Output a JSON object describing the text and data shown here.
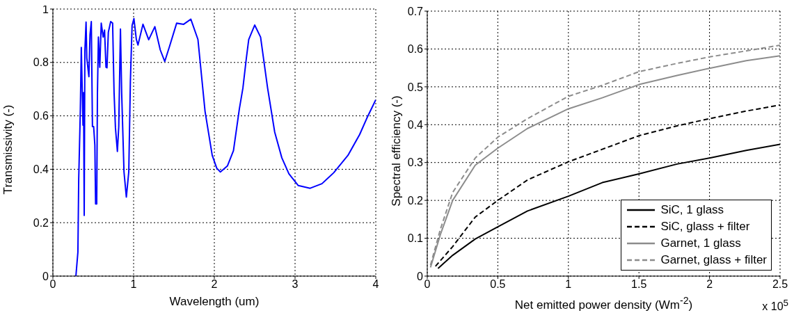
{
  "chart_data": [
    {
      "type": "line",
      "xlabel": "Wavelength (um)",
      "ylabel": "Transmissivity (-)",
      "xlim": [
        0,
        4
      ],
      "ylim": [
        0,
        1
      ],
      "xticks": [
        0,
        1,
        2,
        3,
        4
      ],
      "yticks": [
        0,
        0.2,
        0.4,
        0.6,
        0.8,
        1
      ],
      "grid": true,
      "legend": false,
      "series": [
        {
          "color": "#0000ff",
          "x": [
            0.285,
            0.31,
            0.32,
            0.33,
            0.34,
            0.352,
            0.373,
            0.38,
            0.388,
            0.396,
            0.411,
            0.42,
            0.446,
            0.46,
            0.476,
            0.49,
            0.505,
            0.52,
            0.529,
            0.543,
            0.552,
            0.564,
            0.581,
            0.599,
            0.623,
            0.64,
            0.658,
            0.67,
            0.687,
            0.716,
            0.74,
            0.758,
            0.775,
            0.799,
            0.816,
            0.837,
            0.852,
            0.881,
            0.91,
            0.94,
            0.96,
            0.981,
            1.004,
            1.034,
            1.054,
            1.116,
            1.187,
            1.263,
            1.33,
            1.386,
            1.445,
            1.533,
            1.62,
            1.709,
            1.797,
            1.885,
            1.974,
            2.03,
            2.075,
            2.163,
            2.237,
            2.31,
            2.354,
            2.397,
            2.426,
            2.5,
            2.573,
            2.66,
            2.748,
            2.836,
            2.924,
            3.04,
            3.187,
            3.333,
            3.479,
            3.655,
            3.8,
            3.889,
            4.0
          ],
          "values": [
            0,
            0.09,
            0.365,
            0.49,
            0.62,
            0.856,
            0.565,
            0.687,
            0.227,
            0.84,
            0.951,
            0.817,
            0.747,
            0.904,
            0.953,
            0.56,
            0.56,
            0.49,
            0.27,
            0.27,
            0.687,
            0.895,
            0.782,
            0.947,
            0.895,
            0.921,
            0.782,
            0.78,
            0.913,
            0.953,
            0.947,
            0.687,
            0.555,
            0.467,
            0.56,
            0.925,
            0.687,
            0.39,
            0.296,
            0.39,
            0.73,
            0.938,
            0.964,
            0.886,
            0.865,
            0.943,
            0.885,
            0.934,
            0.847,
            0.804,
            0.86,
            0.947,
            0.943,
            0.962,
            0.886,
            0.617,
            0.452,
            0.404,
            0.39,
            0.413,
            0.47,
            0.626,
            0.704,
            0.817,
            0.886,
            0.94,
            0.895,
            0.704,
            0.539,
            0.443,
            0.383,
            0.339,
            0.329,
            0.346,
            0.387,
            0.452,
            0.53,
            0.591,
            0.66
          ]
        }
      ]
    },
    {
      "type": "line",
      "xlabel": "Net emitted power density (Wm$^{-2}$)",
      "ylabel": "Spectral efficiency (-)",
      "xlim": [
        0,
        2.5
      ],
      "ylim": [
        0,
        0.7
      ],
      "xticks": [
        0,
        0.5,
        1,
        1.5,
        2,
        2.5
      ],
      "yticks": [
        0,
        0.1,
        0.2,
        0.3,
        0.4,
        0.5,
        0.6,
        0.7
      ],
      "grid": true,
      "legend": "bottom right",
      "annotations": [
        "x 10$^{5}$"
      ],
      "series": [
        {
          "name": "SiC, 1 glass",
          "color": "#000000",
          "line_style": "solid",
          "x": [
            0.076,
            0.18,
            0.34,
            0.5,
            0.71,
            1.0,
            1.24,
            1.5,
            1.77,
            2.0,
            2.26,
            2.5
          ],
          "values": [
            0.02,
            0.055,
            0.098,
            0.13,
            0.172,
            0.211,
            0.247,
            0.27,
            0.296,
            0.312,
            0.332,
            0.348
          ]
        },
        {
          "name": "SiC, glass + filter",
          "color": "#000000",
          "line_style": "dashed",
          "x": [
            0.058,
            0.18,
            0.34,
            0.5,
            0.71,
            1.0,
            1.24,
            1.5,
            1.77,
            2.0,
            2.26,
            2.5
          ],
          "values": [
            0.026,
            0.078,
            0.156,
            0.2,
            0.254,
            0.302,
            0.335,
            0.371,
            0.397,
            0.416,
            0.436,
            0.452
          ]
        },
        {
          "name": "Garnet, 1 glass",
          "color": "#8c8c8c",
          "line_style": "solid",
          "x": [
            0.023,
            0.093,
            0.18,
            0.34,
            0.5,
            0.71,
            1.0,
            1.24,
            1.5,
            1.77,
            2.0,
            2.26,
            2.5
          ],
          "values": [
            0.023,
            0.11,
            0.2,
            0.293,
            0.338,
            0.39,
            0.442,
            0.471,
            0.506,
            0.53,
            0.549,
            0.569,
            0.582
          ]
        },
        {
          "name": "Garnet, glass + filter",
          "color": "#8c8c8c",
          "line_style": "dashed",
          "x": [
            0.023,
            0.093,
            0.18,
            0.34,
            0.5,
            0.71,
            1.0,
            1.24,
            1.5,
            1.77,
            2.0,
            2.26,
            2.5
          ],
          "values": [
            0.029,
            0.124,
            0.221,
            0.312,
            0.367,
            0.416,
            0.475,
            0.504,
            0.54,
            0.562,
            0.579,
            0.595,
            0.61
          ]
        }
      ]
    }
  ]
}
